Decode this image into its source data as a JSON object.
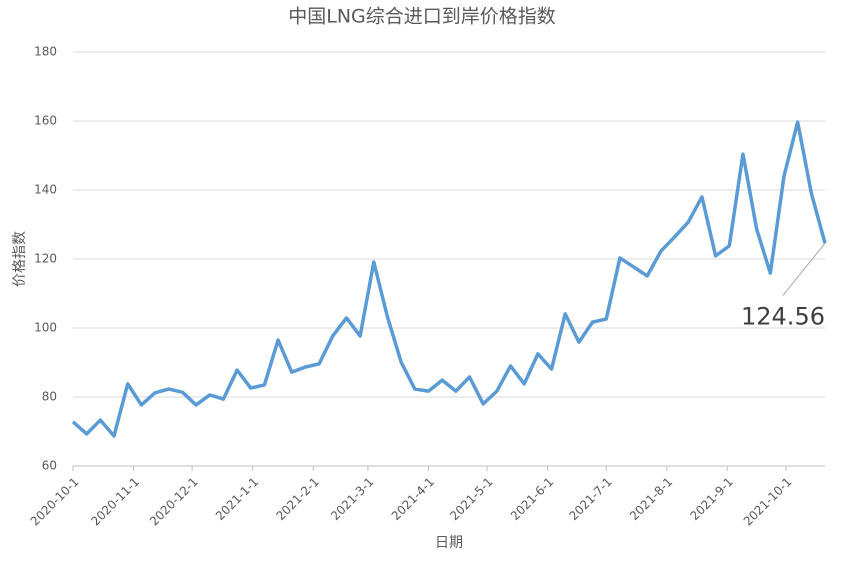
{
  "chart_data": {
    "type": "line",
    "title": "中国LNG综合进口到岸价格指数",
    "x_label": "日期",
    "y_label": "价格指数",
    "x": [
      "2020-10-1",
      "2020-10-8",
      "2020-10-15",
      "2020-10-22",
      "2020-10-29",
      "2020-11-5",
      "2020-11-12",
      "2020-11-19",
      "2020-11-26",
      "2020-12-3",
      "2020-12-10",
      "2020-12-17",
      "2020-12-24",
      "2020-12-31",
      "2021-1-7",
      "2021-1-14",
      "2021-1-21",
      "2021-1-28",
      "2021-2-4",
      "2021-2-11",
      "2021-2-18",
      "2021-2-25",
      "2021-3-4",
      "2021-3-11",
      "2021-3-18",
      "2021-3-25",
      "2021-4-1",
      "2021-4-8",
      "2021-4-15",
      "2021-4-22",
      "2021-4-29",
      "2021-5-6",
      "2021-5-13",
      "2021-5-20",
      "2021-5-27",
      "2021-6-3",
      "2021-6-10",
      "2021-6-17",
      "2021-6-24",
      "2021-7-1",
      "2021-7-8",
      "2021-7-15",
      "2021-7-22",
      "2021-7-29",
      "2021-8-5",
      "2021-8-12",
      "2021-8-19",
      "2021-8-26",
      "2021-9-2",
      "2021-9-9",
      "2021-9-16",
      "2021-9-23",
      "2021-9-30",
      "2021-10-7",
      "2021-10-14",
      "2021-10-21"
    ],
    "values": [
      72.8,
      69.3,
      73.3,
      68.7,
      83.8,
      77.7,
      81.2,
      82.3,
      81.4,
      77.7,
      80.6,
      79.4,
      87.8,
      82.6,
      83.5,
      96.5,
      87.2,
      88.7,
      89.6,
      97.7,
      102.9,
      97.7,
      119.1,
      103.2,
      90.1,
      82.3,
      81.7,
      84.9,
      81.7,
      85.8,
      78,
      81.7,
      89,
      83.8,
      92.5,
      88.1,
      104.1,
      95.9,
      101.7,
      102.6,
      120.3,
      117.7,
      115.1,
      122.3,
      126.4,
      130.7,
      138,
      120.9,
      123.8,
      150.4,
      128.7,
      115.9,
      144,
      159.7,
      139.1,
      124.56
    ],
    "color": "#5b9bd5",
    "xlim": [
      "2020-10-1",
      "2021-10-21"
    ],
    "xticks": [
      "2020-10-1",
      "2020-11-1",
      "2020-12-1",
      "2021-1-1",
      "2021-2-1",
      "2021-3-1",
      "2021-4-1",
      "2021-5-1",
      "2021-6-1",
      "2021-7-1",
      "2021-8-1",
      "2021-9-1",
      "2021-10-1"
    ],
    "ylim": [
      60,
      180
    ],
    "yticks": [
      60,
      80,
      100,
      120,
      140,
      160,
      180
    ],
    "grid": true
  }
}
